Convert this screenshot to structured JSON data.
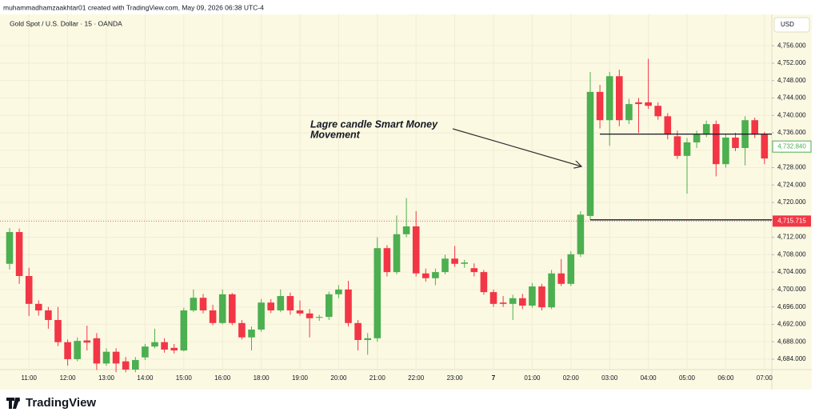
{
  "chart_data": {
    "type": "candlestick",
    "credit": "muhammadhamzaakhtar01 created with TradingView.com, May 09, 2026 06:38 UTC-4",
    "symbol": "Gold Spot / U.S. Dollar · 15 · OANDA",
    "currency": "USD",
    "brand": "TradingView",
    "annotation": [
      "Lagre candle Smart Money",
      "Movement"
    ],
    "up_color": "#4caf50",
    "down_color": "#f23645",
    "categories": [
      null,
      null,
      "11:00",
      null,
      null,
      null,
      "12:00",
      null,
      null,
      null,
      "13:00",
      null,
      null,
      null,
      "14:00",
      null,
      null,
      null,
      "15:00",
      null,
      null,
      null,
      "16:00",
      null,
      null,
      null,
      "18:00",
      null,
      null,
      null,
      "19:00",
      null,
      null,
      null,
      "20:00",
      null,
      null,
      null,
      "21:00",
      null,
      null,
      null,
      "22:00",
      null,
      null,
      null,
      "23:00",
      null,
      null,
      null,
      "7",
      null,
      null,
      null,
      "01:00",
      null,
      null,
      null,
      "02:00",
      null,
      null,
      null,
      "03:00",
      null,
      null,
      null,
      "04:00",
      null,
      null,
      null,
      "05:00",
      null,
      null,
      null,
      "06:00",
      null,
      null,
      null,
      "07:00"
    ],
    "open": [
      4705.9,
      4713.2,
      4703.1,
      4696.7,
      4695.2,
      4693.0,
      4687.9,
      4684.0,
      4688.3,
      4688.8,
      4683.0,
      4685.7,
      4683.5,
      4681.6,
      4684.4,
      4686.9,
      4687.9,
      4686.6,
      4686.0,
      4695.2,
      4698.1,
      4695.2,
      4692.3,
      4698.9,
      4692.3,
      4689.0,
      4690.8,
      4697.0,
      4695.2,
      4698.5,
      4695.2,
      4694.5,
      4693.5,
      4693.7,
      4698.9,
      4700.0,
      4692.3,
      4688.4,
      4688.8,
      4709.5,
      4704.0,
      4712.7,
      4714.5,
      4703.7,
      4702.6,
      4704.0,
      4707.1,
      4705.9,
      4704.9,
      4704.0,
      4699.4,
      4697.0,
      4696.7,
      4698.0,
      4696.3,
      4700.7,
      4695.9,
      4703.7,
      4701.3,
      4708.1,
      4716.9,
      4745.4,
      4738.9,
      4749.0,
      4738.9,
      4743.0,
      4743.0,
      4742.2,
      4739.8,
      4735.2,
      4730.7,
      4733.8,
      4735.6,
      4738.0,
      4728.8,
      4734.9,
      4732.5,
      4738.9,
      4735.6
    ],
    "high": [
      4714.1,
      4714.0,
      4705.0,
      4697.5,
      4696.0,
      4696.0,
      4688.5,
      4689.0,
      4691.7,
      4690.0,
      4686.5,
      4686.5,
      4684.5,
      4684.5,
      4687.5,
      4691.0,
      4688.8,
      4687.5,
      4695.8,
      4700.0,
      4699.0,
      4696.5,
      4700.0,
      4699.2,
      4693.0,
      4691.5,
      4697.8,
      4697.8,
      4700.0,
      4699.3,
      4697.5,
      4695.5,
      4694.2,
      4699.5,
      4701.0,
      4702.0,
      4693.0,
      4690.0,
      4712.0,
      4710.2,
      4717.0,
      4721.0,
      4718.0,
      4704.8,
      4704.8,
      4708.0,
      4710.0,
      4706.8,
      4706.0,
      4704.5,
      4700.0,
      4698.5,
      4698.8,
      4699.0,
      4701.5,
      4701.3,
      4704.5,
      4707.0,
      4708.8,
      4718.0,
      4750.0,
      4747.0,
      4750.0,
      4750.5,
      4743.8,
      4744.0,
      4753.0,
      4743.0,
      4740.5,
      4736.5,
      4734.8,
      4736.5,
      4738.8,
      4738.8,
      4735.8,
      4736.0,
      4739.8,
      4739.5,
      4736.2
    ],
    "low": [
      4704.6,
      4701.3,
      4693.9,
      4694.0,
      4691.0,
      4687.0,
      4682.5,
      4683.5,
      4686.0,
      4681.5,
      4682.5,
      4681.0,
      4681.0,
      4681.0,
      4683.8,
      4686.5,
      4685.5,
      4685.3,
      4685.8,
      4694.8,
      4694.5,
      4691.8,
      4692.0,
      4691.8,
      4688.5,
      4686.0,
      4690.3,
      4694.6,
      4694.8,
      4694.2,
      4694.0,
      4689.0,
      4692.8,
      4693.0,
      4698.0,
      4691.5,
      4686.0,
      4685.0,
      4688.0,
      4703.0,
      4703.5,
      4712.0,
      4703.0,
      4701.8,
      4701.0,
      4703.5,
      4705.2,
      4705.0,
      4703.0,
      4698.8,
      4696.0,
      4696.0,
      4693.0,
      4695.5,
      4695.8,
      4695.2,
      4695.5,
      4700.8,
      4700.8,
      4707.5,
      4716.0,
      4737.0,
      4733.0,
      4737.5,
      4738.0,
      4736.0,
      4741.5,
      4739.0,
      4734.5,
      4730.0,
      4722.0,
      4732.5,
      4735.0,
      4726.0,
      4728.0,
      4731.8,
      4728.5,
      4734.8,
      4728.8
    ],
    "close": [
      4713.2,
      4703.1,
      4696.7,
      4695.2,
      4693.0,
      4687.9,
      4684.0,
      4688.2,
      4687.8,
      4683.0,
      4685.7,
      4683.0,
      4681.6,
      4683.8,
      4686.9,
      4687.9,
      4686.2,
      4686.0,
      4695.2,
      4698.1,
      4695.2,
      4692.3,
      4698.9,
      4692.3,
      4689.0,
      4690.8,
      4697.0,
      4695.2,
      4698.5,
      4695.2,
      4694.5,
      4693.4,
      4693.7,
      4698.9,
      4700.0,
      4692.3,
      4688.4,
      4688.8,
      4709.5,
      4704.0,
      4712.7,
      4714.5,
      4703.7,
      4702.6,
      4704.0,
      4707.1,
      4705.9,
      4706.2,
      4704.0,
      4699.4,
      4696.7,
      4696.7,
      4698.0,
      4696.3,
      4700.7,
      4695.9,
      4703.7,
      4701.3,
      4708.1,
      4717.2,
      4745.4,
      4738.9,
      4749.0,
      4738.9,
      4742.6,
      4742.6,
      4742.2,
      4739.8,
      4735.6,
      4730.7,
      4733.8,
      4735.6,
      4738.0,
      4728.8,
      4734.9,
      4732.5,
      4738.9,
      4735.6,
      4730.1
    ],
    "ylim": [
      4681.6,
      4763.2
    ],
    "yticks": [
      {
        "value": 4684,
        "label": "4,684.000"
      },
      {
        "value": 4688,
        "label": "4,688.000"
      },
      {
        "value": 4692,
        "label": "4,692.000"
      },
      {
        "value": 4696,
        "label": "4,696.000"
      },
      {
        "value": 4700,
        "label": "4,700.000"
      },
      {
        "value": 4704,
        "label": "4,704.000"
      },
      {
        "value": 4708,
        "label": "4,708.000"
      },
      {
        "value": 4712,
        "label": "4,712.000"
      },
      {
        "value": 4716,
        "label": "4,716.000"
      },
      {
        "value": 4720,
        "label": "4,720.000"
      },
      {
        "value": 4724,
        "label": "4,724.000"
      },
      {
        "value": 4728,
        "label": "4,728.000"
      },
      {
        "value": 4732,
        "label": "4,732.000"
      },
      {
        "value": 4736,
        "label": "4,736.000"
      },
      {
        "value": 4740,
        "label": "4,740.000"
      },
      {
        "value": 4744,
        "label": "4,744.000"
      },
      {
        "value": 4748,
        "label": "4,748.000"
      },
      {
        "value": 4752,
        "label": "4,752.000"
      },
      {
        "value": 4756,
        "label": "4,756.000"
      }
    ],
    "last_price": {
      "value": 4732.84,
      "label": "4,732.840"
    },
    "marked_price": {
      "value": 4715.715,
      "label": "4,715.715"
    },
    "lines": [
      4735.7,
      4716.0
    ]
  }
}
